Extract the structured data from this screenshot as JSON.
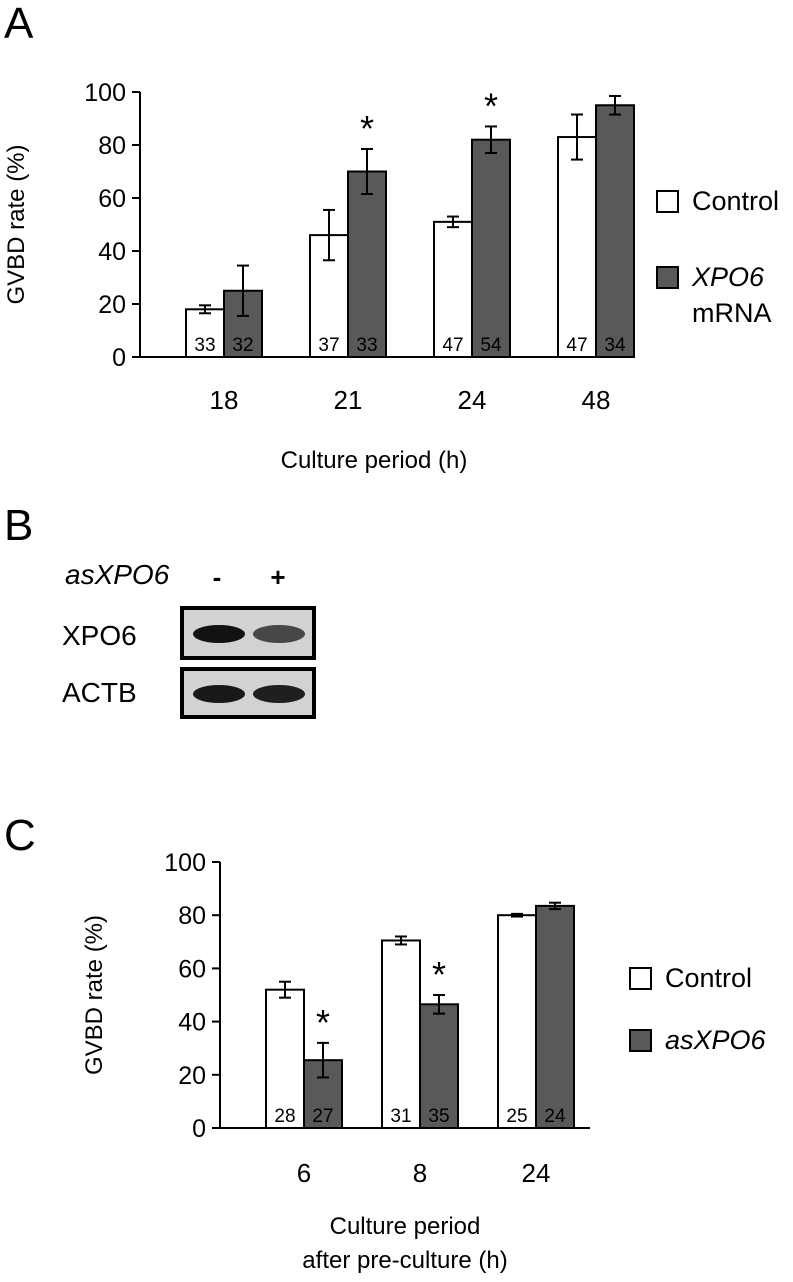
{
  "colors": {
    "control": "#ffffff",
    "treatment": "#595959",
    "stroke": "#000000"
  },
  "panels": {
    "a": {
      "letter": "A"
    },
    "b": {
      "letter": "B",
      "treatment_label": "asXPO6",
      "lanes": [
        "-",
        "+"
      ],
      "bands": [
        {
          "name": "XPO6",
          "intensity": [
            0.95,
            0.55
          ]
        },
        {
          "name": "ACTB",
          "intensity": [
            0.9,
            0.85
          ]
        }
      ]
    },
    "c": {
      "letter": "C"
    }
  },
  "chart_data": [
    {
      "type": "bar",
      "title": "",
      "xlabel": "Culture period (h)",
      "xlabel_lines": [
        "Culture period (h)"
      ],
      "ylabel": "GVBD rate (%)",
      "ylim": [
        0,
        100
      ],
      "yticks": [
        0,
        20,
        40,
        60,
        80,
        100
      ],
      "categories": [
        "18",
        "21",
        "24",
        "48"
      ],
      "legend_position": "right",
      "series": [
        {
          "name": "Control",
          "legend_lines": [
            "Control"
          ],
          "italic": false,
          "color_key": "control",
          "values": [
            18,
            46,
            51,
            83
          ],
          "errors": [
            1.5,
            9.5,
            2,
            8.5
          ],
          "n": [
            "33",
            "37",
            "47",
            "47"
          ]
        },
        {
          "name": "XPO6 mRNA",
          "legend_lines": [
            "XPO6",
            "mRNA"
          ],
          "italic": true,
          "color_key": "treatment",
          "values": [
            25,
            70,
            82,
            95
          ],
          "errors": [
            9.5,
            8.5,
            5,
            3.5
          ],
          "n": [
            "32",
            "33",
            "54",
            "34"
          ]
        }
      ],
      "significance": [
        {
          "category_index": 1,
          "series_index": 1,
          "label": "*"
        },
        {
          "category_index": 2,
          "series_index": 1,
          "label": "*"
        }
      ]
    },
    {
      "type": "bar",
      "title": "",
      "xlabel": "Culture period after pre-culture (h)",
      "xlabel_lines": [
        "Culture period",
        "after pre-culture (h)"
      ],
      "ylabel": "GVBD rate (%)",
      "ylim": [
        0,
        100
      ],
      "yticks": [
        0,
        20,
        40,
        60,
        80,
        100
      ],
      "categories": [
        "6",
        "8",
        "24"
      ],
      "legend_position": "right",
      "series": [
        {
          "name": "Control",
          "legend_lines": [
            "Control"
          ],
          "italic": false,
          "color_key": "control",
          "values": [
            52,
            70.5,
            80
          ],
          "errors": [
            3,
            1.5,
            0.5
          ],
          "n": [
            "28",
            "31",
            "25"
          ]
        },
        {
          "name": "asXPO6",
          "legend_lines": [
            "asXPO6"
          ],
          "italic": true,
          "color_key": "treatment",
          "values": [
            25.5,
            46.5,
            83.5
          ],
          "errors": [
            6.5,
            3.5,
            1.2
          ],
          "n": [
            "27",
            "35",
            "24"
          ]
        }
      ],
      "significance": [
        {
          "category_index": 0,
          "series_index": 1,
          "label": "*"
        },
        {
          "category_index": 1,
          "series_index": 1,
          "label": "*"
        }
      ]
    }
  ]
}
